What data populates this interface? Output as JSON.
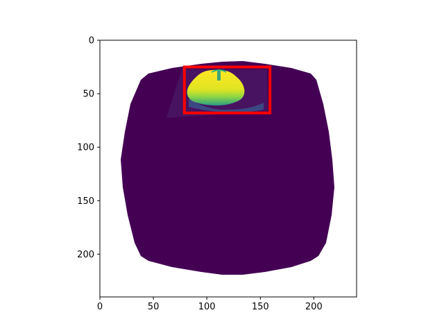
{
  "chart_data": {
    "type": "image",
    "colormap": "viridis",
    "grid": false,
    "xlim": [
      0,
      240
    ],
    "ylim": [
      240,
      0
    ],
    "x_ticks": [
      0,
      50,
      100,
      150,
      200
    ],
    "y_ticks": [
      0,
      50,
      100,
      150,
      200
    ],
    "image": {
      "background_color": "#ffffff",
      "mask_color": "#440154",
      "mask_shape": "barrel-distorted square",
      "mask_center": [
        119,
        120
      ],
      "mask_half_width_at_center_row": 101,
      "mask_half_width_at_top_edge": 79,
      "mask_top": 20,
      "mask_bottom": 220,
      "object": {
        "label": "",
        "center": [
          110,
          42
        ],
        "colors": [
          "#fde725",
          "#b5de2b",
          "#35b779",
          "#1f9e89"
        ]
      }
    },
    "bounding_box": {
      "x_min": 79,
      "y_min": 25,
      "x_max": 159,
      "y_max": 68,
      "color": "#ff0000"
    }
  }
}
